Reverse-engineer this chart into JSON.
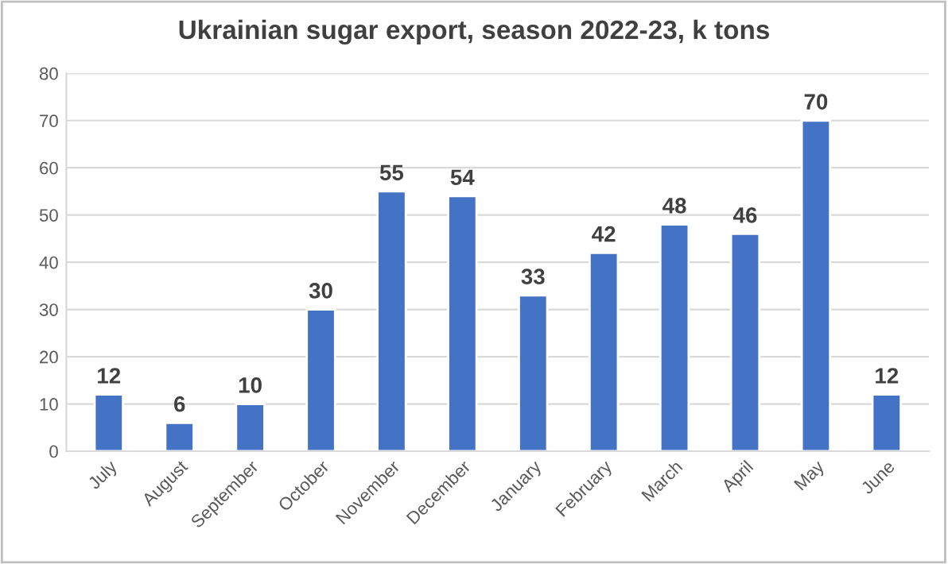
{
  "chart_data": {
    "type": "bar",
    "title": "Ukrainian sugar export, season 2022-23, k tons",
    "categories": [
      "July",
      "August",
      "September",
      "October",
      "November",
      "December",
      "January",
      "February",
      "March",
      "April",
      "May",
      "June"
    ],
    "values": [
      12,
      6,
      10,
      30,
      55,
      54,
      33,
      42,
      48,
      46,
      70,
      12
    ],
    "color": "#4472c4",
    "ylim": [
      0,
      80
    ],
    "yticks": [
      0,
      10,
      20,
      30,
      40,
      50,
      60,
      70,
      80
    ],
    "grid": "y",
    "data_labels": true
  }
}
